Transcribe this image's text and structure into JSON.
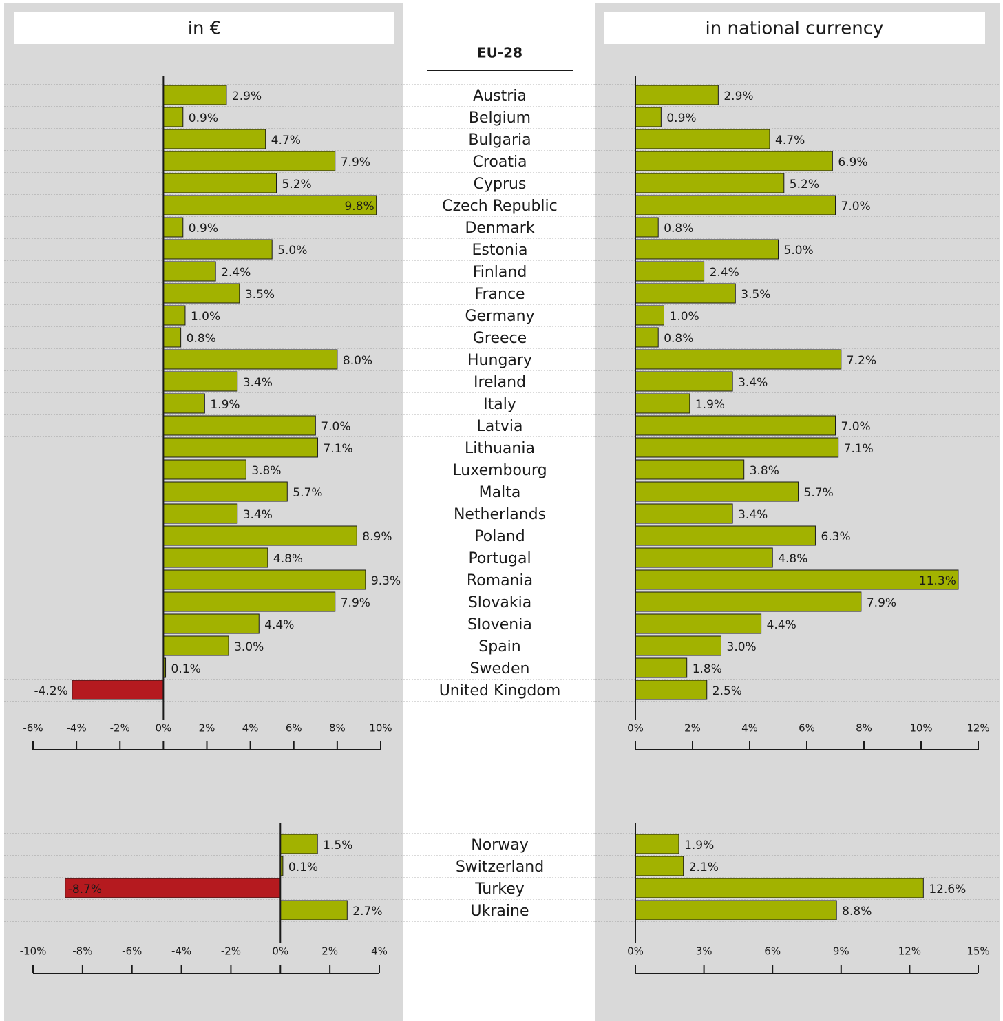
{
  "headers": {
    "left": "in €",
    "right": "in national currency"
  },
  "group_label": "EU-28",
  "colors": {
    "panel": "#d9d9d9",
    "positive": "#a2b200",
    "negative": "#b51a1f",
    "bar_stroke": "#1a1a1a"
  },
  "chart_data": [
    {
      "type": "bar",
      "orientation": "horizontal",
      "panel": "in €",
      "group": "EU-28",
      "categories": [
        "Austria",
        "Belgium",
        "Bulgaria",
        "Croatia",
        "Cyprus",
        "Czech Republic",
        "Denmark",
        "Estonia",
        "Finland",
        "France",
        "Germany",
        "Greece",
        "Hungary",
        "Ireland",
        "Italy",
        "Latvia",
        "Lithuania",
        "Luxembourg",
        "Malta",
        "Netherlands",
        "Poland",
        "Portugal",
        "Romania",
        "Slovakia",
        "Slovenia",
        "Spain",
        "Sweden",
        "United Kingdom"
      ],
      "values": [
        2.9,
        0.9,
        4.7,
        7.9,
        5.2,
        9.8,
        0.9,
        5.0,
        2.4,
        3.5,
        1.0,
        0.8,
        8.0,
        3.4,
        1.9,
        7.0,
        7.1,
        3.8,
        5.7,
        3.4,
        8.9,
        4.8,
        9.3,
        7.9,
        4.4,
        3.0,
        0.1,
        -4.2
      ],
      "value_labels": [
        "2.9%",
        "0.9%",
        "4.7%",
        "7.9%",
        "5.2%",
        "9.8%",
        "0.9%",
        "5.0%",
        "2.4%",
        "3.5%",
        "1.0%",
        "0.8%",
        "8.0%",
        "3.4%",
        "1.9%",
        "7.0%",
        "7.1%",
        "3.8%",
        "5.7%",
        "3.4%",
        "8.9%",
        "4.8%",
        "9.3%",
        "7.9%",
        "4.4%",
        "3.0%",
        "0.1%",
        "-4.2%"
      ],
      "xlim": [
        -6,
        10
      ],
      "ticks": [
        -6,
        -4,
        -2,
        0,
        2,
        4,
        6,
        8,
        10
      ],
      "tick_labels": [
        "-6%",
        "-4%",
        "-2%",
        "0%",
        "2%",
        "4%",
        "6%",
        "8%",
        "10%"
      ]
    },
    {
      "type": "bar",
      "orientation": "horizontal",
      "panel": "in national currency",
      "group": "EU-28",
      "categories": [
        "Austria",
        "Belgium",
        "Bulgaria",
        "Croatia",
        "Cyprus",
        "Czech Republic",
        "Denmark",
        "Estonia",
        "Finland",
        "France",
        "Germany",
        "Greece",
        "Hungary",
        "Ireland",
        "Italy",
        "Latvia",
        "Lithuania",
        "Luxembourg",
        "Malta",
        "Netherlands",
        "Poland",
        "Portugal",
        "Romania",
        "Slovakia",
        "Slovenia",
        "Spain",
        "Sweden",
        "United Kingdom"
      ],
      "values": [
        2.9,
        0.9,
        4.7,
        6.9,
        5.2,
        7.0,
        0.8,
        5.0,
        2.4,
        3.5,
        1.0,
        0.8,
        7.2,
        3.4,
        1.9,
        7.0,
        7.1,
        3.8,
        5.7,
        3.4,
        6.3,
        4.8,
        11.3,
        7.9,
        4.4,
        3.0,
        1.8,
        2.5
      ],
      "value_labels": [
        "2.9%",
        "0.9%",
        "4.7%",
        "6.9%",
        "5.2%",
        "7.0%",
        "0.8%",
        "5.0%",
        "2.4%",
        "3.5%",
        "1.0%",
        "0.8%",
        "7.2%",
        "3.4%",
        "1.9%",
        "7.0%",
        "7.1%",
        "3.8%",
        "5.7%",
        "3.4%",
        "6.3%",
        "4.8%",
        "11.3%",
        "7.9%",
        "4.4%",
        "3.0%",
        "1.8%",
        "2.5%"
      ],
      "xlim": [
        0,
        12
      ],
      "ticks": [
        0,
        2,
        4,
        6,
        8,
        10,
        12
      ],
      "tick_labels": [
        "0%",
        "2%",
        "4%",
        "6%",
        "8%",
        "10%",
        "12%"
      ]
    },
    {
      "type": "bar",
      "orientation": "horizontal",
      "panel": "in €",
      "group": "other",
      "categories": [
        "Norway",
        "Switzerland",
        "Turkey",
        "Ukraine"
      ],
      "values": [
        1.5,
        0.1,
        -8.7,
        2.7
      ],
      "value_labels": [
        "1.5%",
        "0.1%",
        "-8.7%",
        "2.7%"
      ],
      "xlim": [
        -10,
        4
      ],
      "ticks": [
        -10,
        -8,
        -6,
        -4,
        -2,
        0,
        2,
        4
      ],
      "tick_labels": [
        "-10%",
        "-8%",
        "-6%",
        "-4%",
        "-2%",
        "0%",
        "2%",
        "4%"
      ]
    },
    {
      "type": "bar",
      "orientation": "horizontal",
      "panel": "in national currency",
      "group": "other",
      "categories": [
        "Norway",
        "Switzerland",
        "Turkey",
        "Ukraine"
      ],
      "values": [
        1.9,
        2.1,
        12.6,
        8.8
      ],
      "value_labels": [
        "1.9%",
        "2.1%",
        "12.6%",
        "8.8%"
      ],
      "xlim": [
        0,
        15
      ],
      "ticks": [
        0,
        3,
        6,
        9,
        12,
        15
      ],
      "tick_labels": [
        "0%",
        "3%",
        "6%",
        "9%",
        "12%",
        "15%"
      ]
    }
  ]
}
